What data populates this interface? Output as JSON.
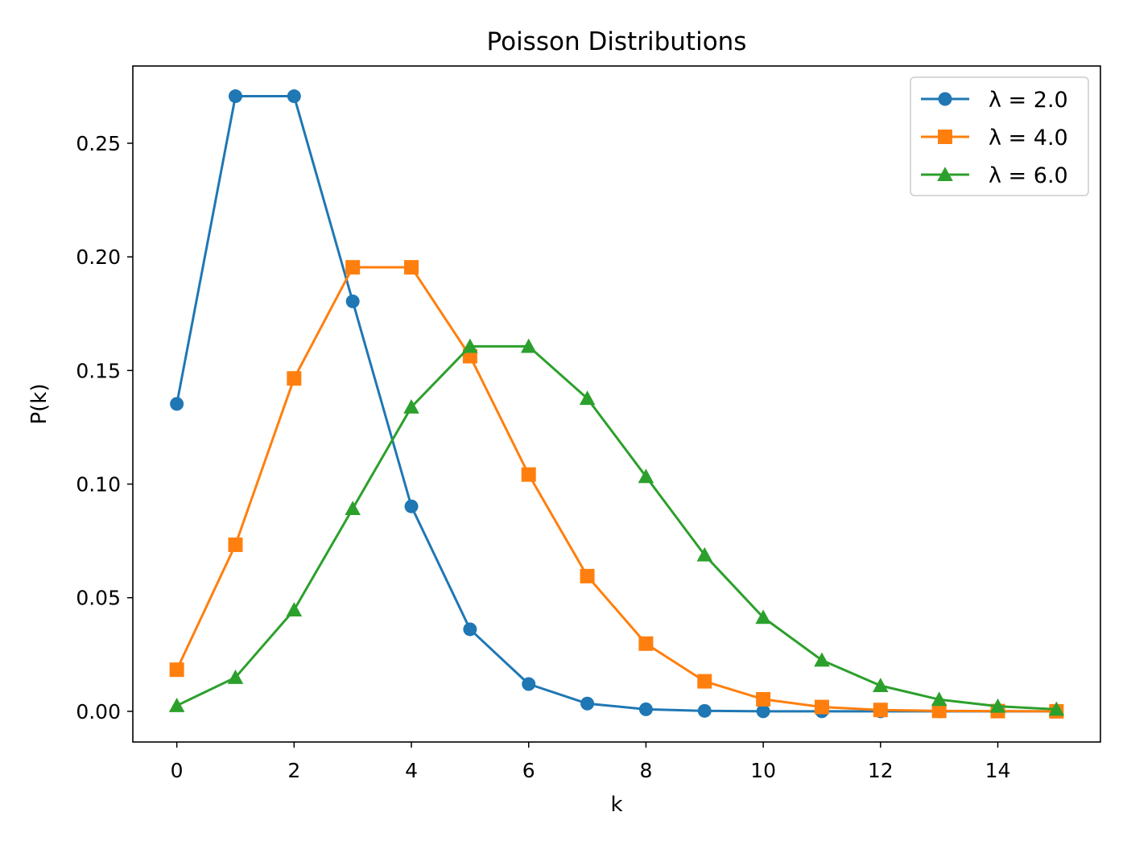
{
  "chart_data": {
    "type": "line",
    "title": "Poisson Distributions",
    "xlabel": "k",
    "ylabel": "P(k)",
    "xlim": [
      -0.75,
      15.75
    ],
    "ylim": [
      -0.0135,
      0.284
    ],
    "xticks": [
      0,
      2,
      4,
      6,
      8,
      10,
      12,
      14
    ],
    "xtick_labels": [
      "0",
      "2",
      "4",
      "6",
      "8",
      "10",
      "12",
      "14"
    ],
    "yticks": [
      0.0,
      0.05,
      0.1,
      0.15,
      0.2,
      0.25
    ],
    "ytick_labels": [
      "0.00",
      "0.05",
      "0.10",
      "0.15",
      "0.20",
      "0.25"
    ],
    "grid": false,
    "legend_position": "top-right",
    "x": [
      0,
      1,
      2,
      3,
      4,
      5,
      6,
      7,
      8,
      9,
      10,
      11,
      12,
      13,
      14,
      15
    ],
    "series": [
      {
        "name": "λ = 2.0",
        "color": "#1f77b4",
        "marker": "circle",
        "values": [
          0.1353,
          0.2707,
          0.2707,
          0.1804,
          0.0902,
          0.0361,
          0.012,
          0.0034,
          0.0009,
          0.0002,
          0.0,
          0.0,
          0.0,
          0.0,
          0.0,
          0.0
        ]
      },
      {
        "name": "λ = 4.0",
        "color": "#ff7f0e",
        "marker": "square",
        "values": [
          0.0183,
          0.0733,
          0.1465,
          0.1954,
          0.1954,
          0.1563,
          0.1042,
          0.0595,
          0.0298,
          0.0132,
          0.0053,
          0.0019,
          0.0006,
          0.0002,
          0.0001,
          0.0
        ]
      },
      {
        "name": "λ = 6.0",
        "color": "#2ca02c",
        "marker": "triangle",
        "values": [
          0.0025,
          0.0149,
          0.0446,
          0.0892,
          0.1339,
          0.1606,
          0.1606,
          0.1377,
          0.1033,
          0.0688,
          0.0413,
          0.0225,
          0.0113,
          0.0052,
          0.0022,
          0.0009
        ]
      }
    ]
  }
}
